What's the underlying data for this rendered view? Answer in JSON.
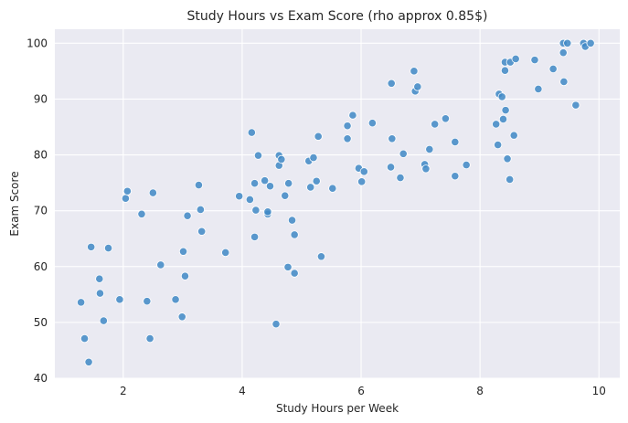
{
  "colors": {
    "point": "#3f88c5",
    "plot_background": "#eaeaf2",
    "grid": "#ffffff"
  },
  "chart_data": {
    "type": "scatter",
    "title": "Study Hours vs Exam Score (rho approx 0.85$)",
    "xlabel": "Study Hours per Week",
    "ylabel": "Exam Score",
    "xlim": [
      0.85,
      10.35
    ],
    "ylim": [
      40,
      102.5
    ],
    "xticks": [
      2,
      4,
      6,
      8,
      10
    ],
    "yticks": [
      40,
      50,
      60,
      70,
      80,
      90,
      100
    ],
    "xtick_labels": [
      "2",
      "4",
      "6",
      "8",
      "10"
    ],
    "ytick_labels": [
      "40",
      "50",
      "60",
      "70",
      "80",
      "90",
      "100"
    ],
    "grid": true,
    "legend": "none",
    "points": [
      [
        1.29,
        53.6
      ],
      [
        1.35,
        47.1
      ],
      [
        1.42,
        42.9
      ],
      [
        1.46,
        63.5
      ],
      [
        1.6,
        57.8
      ],
      [
        1.61,
        55.2
      ],
      [
        1.67,
        50.3
      ],
      [
        1.75,
        63.3
      ],
      [
        1.94,
        54.1
      ],
      [
        2.04,
        72.2
      ],
      [
        2.07,
        73.5
      ],
      [
        2.31,
        69.4
      ],
      [
        2.4,
        53.8
      ],
      [
        2.45,
        47.1
      ],
      [
        2.5,
        73.2
      ],
      [
        2.63,
        60.3
      ],
      [
        2.88,
        54.1
      ],
      [
        2.99,
        51.0
      ],
      [
        3.01,
        62.7
      ],
      [
        3.04,
        58.3
      ],
      [
        3.08,
        69.1
      ],
      [
        3.27,
        74.6
      ],
      [
        3.3,
        70.2
      ],
      [
        3.32,
        66.3
      ],
      [
        3.72,
        62.5
      ],
      [
        3.95,
        72.6
      ],
      [
        4.13,
        72.0
      ],
      [
        4.16,
        84.0
      ],
      [
        4.21,
        65.3
      ],
      [
        4.21,
        74.9
      ],
      [
        4.23,
        70.1
      ],
      [
        4.27,
        79.9
      ],
      [
        4.38,
        75.4
      ],
      [
        4.43,
        69.4
      ],
      [
        4.43,
        69.8
      ],
      [
        4.47,
        74.4
      ],
      [
        4.57,
        49.7
      ],
      [
        4.62,
        79.9
      ],
      [
        4.62,
        78.1
      ],
      [
        4.66,
        79.2
      ],
      [
        4.72,
        72.7
      ],
      [
        4.77,
        59.9
      ],
      [
        4.78,
        74.9
      ],
      [
        4.84,
        68.3
      ],
      [
        4.88,
        65.7
      ],
      [
        4.88,
        58.8
      ],
      [
        5.12,
        78.9
      ],
      [
        5.15,
        74.2
      ],
      [
        5.2,
        79.5
      ],
      [
        5.25,
        75.3
      ],
      [
        5.28,
        83.3
      ],
      [
        5.33,
        61.8
      ],
      [
        5.52,
        74.0
      ],
      [
        5.77,
        85.2
      ],
      [
        5.77,
        82.9
      ],
      [
        5.86,
        87.1
      ],
      [
        5.96,
        77.6
      ],
      [
        6.01,
        75.2
      ],
      [
        6.05,
        77.0
      ],
      [
        6.19,
        85.7
      ],
      [
        6.5,
        77.8
      ],
      [
        6.51,
        92.8
      ],
      [
        6.52,
        82.9
      ],
      [
        6.66,
        75.9
      ],
      [
        6.71,
        80.2
      ],
      [
        6.89,
        95.0
      ],
      [
        6.91,
        91.4
      ],
      [
        6.95,
        92.2
      ],
      [
        7.07,
        78.3
      ],
      [
        7.09,
        77.5
      ],
      [
        7.15,
        81.0
      ],
      [
        7.24,
        85.5
      ],
      [
        7.42,
        86.5
      ],
      [
        7.58,
        76.2
      ],
      [
        7.58,
        82.3
      ],
      [
        7.77,
        78.2
      ],
      [
        8.27,
        85.5
      ],
      [
        8.3,
        81.8
      ],
      [
        8.32,
        90.9
      ],
      [
        8.37,
        90.4
      ],
      [
        8.39,
        86.4
      ],
      [
        8.42,
        96.6
      ],
      [
        8.42,
        95.1
      ],
      [
        8.43,
        88.0
      ],
      [
        8.46,
        79.3
      ],
      [
        8.5,
        75.6
      ],
      [
        8.51,
        96.6
      ],
      [
        8.57,
        83.5
      ],
      [
        8.6,
        97.2
      ],
      [
        9.23,
        95.4
      ],
      [
        8.92,
        97.0
      ],
      [
        8.98,
        91.8
      ],
      [
        9.4,
        100.0
      ],
      [
        9.4,
        98.3
      ],
      [
        9.41,
        93.1
      ],
      [
        9.47,
        100.0
      ],
      [
        9.61,
        88.9
      ],
      [
        9.74,
        100.0
      ],
      [
        9.77,
        99.4
      ],
      [
        9.86,
        100.0
      ]
    ]
  }
}
